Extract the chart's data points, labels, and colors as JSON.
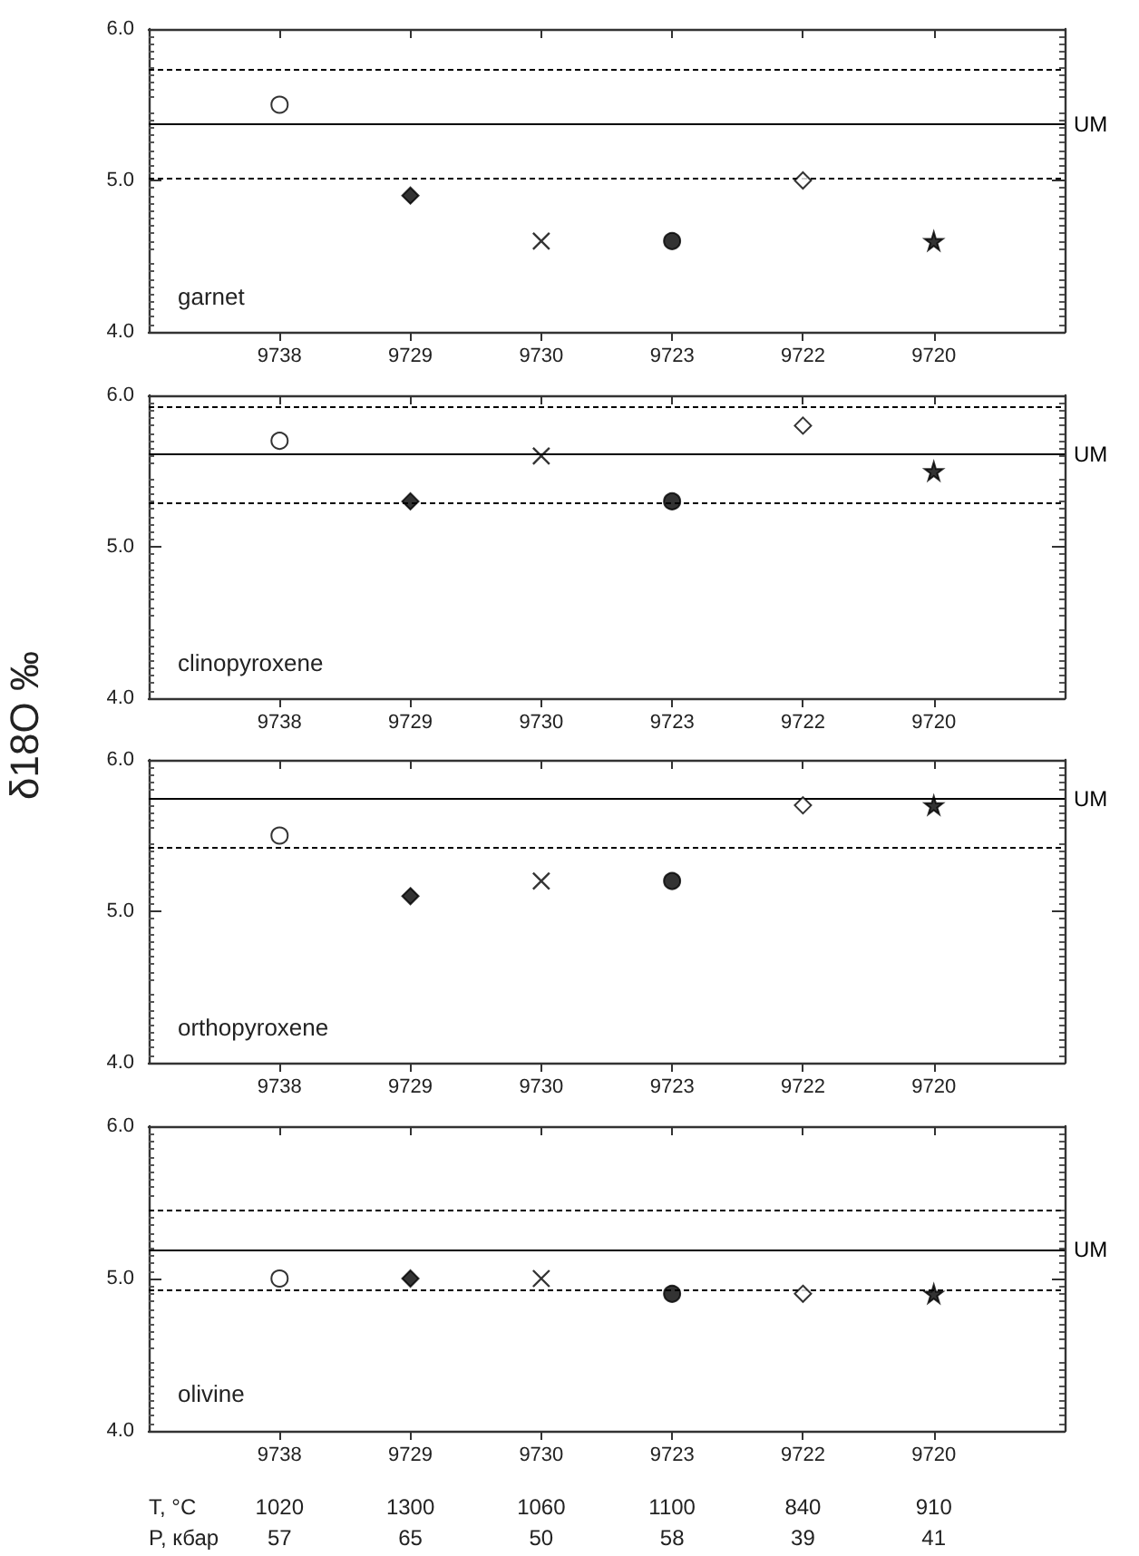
{
  "chart_data": [
    {
      "type": "scatter",
      "title": "garnet",
      "categories": [
        "9738",
        "9729",
        "9730",
        "9723",
        "9722",
        "9720"
      ],
      "ylim": [
        4,
        6
      ],
      "yticks": [
        {
          "value": 4,
          "label": "4.0"
        },
        {
          "value": 5,
          "label": "5.0"
        },
        {
          "value": 6,
          "label": "6.0"
        }
      ],
      "grid": false,
      "series": [
        {
          "values": [
            5.5,
            null,
            null,
            null,
            null,
            null
          ],
          "marker": "circle",
          "color": "#ffffff"
        },
        {
          "values": [
            null,
            4.9,
            null,
            null,
            null,
            null
          ],
          "marker": "diamond",
          "color": "#000000"
        },
        {
          "values": [
            null,
            null,
            4.6,
            null,
            null,
            null
          ],
          "marker": "cross",
          "color": "#000000"
        },
        {
          "values": [
            null,
            null,
            null,
            4.6,
            null,
            null
          ],
          "marker": "circle",
          "color": "#000000"
        },
        {
          "values": [
            null,
            null,
            null,
            null,
            5.0,
            null
          ],
          "marker": "diamond",
          "color": "#ffffff"
        },
        {
          "values": [
            null,
            null,
            null,
            null,
            null,
            4.6
          ],
          "marker": "star",
          "color": "#000000"
        }
      ],
      "ref_lines": [
        {
          "axis": "y",
          "value": 5.73,
          "line_style": "dashed",
          "color": "#000000"
        },
        {
          "axis": "y",
          "value": 5.37,
          "label": "UM",
          "line_style": "solid",
          "color": "#000000"
        },
        {
          "axis": "y",
          "value": 5.02,
          "line_style": "dashed",
          "color": "#000000"
        }
      ]
    },
    {
      "type": "scatter",
      "title": "clinopyroxene",
      "ylabel": "δ18O ‰",
      "categories": [
        "9738",
        "9729",
        "9730",
        "9723",
        "9722",
        "9720"
      ],
      "ylim": [
        4,
        6
      ],
      "yticks": [
        {
          "value": 4,
          "label": "4.0"
        },
        {
          "value": 5,
          "label": "5.0"
        },
        {
          "value": 6,
          "label": "6.0"
        }
      ],
      "grid": false,
      "series": [
        {
          "values": [
            5.7,
            null,
            null,
            null,
            null,
            null
          ],
          "marker": "circle",
          "color": "#ffffff"
        },
        {
          "values": [
            null,
            5.3,
            null,
            null,
            null,
            null
          ],
          "marker": "diamond",
          "color": "#000000"
        },
        {
          "values": [
            null,
            null,
            5.6,
            null,
            null,
            null
          ],
          "marker": "cross",
          "color": "#000000"
        },
        {
          "values": [
            null,
            null,
            null,
            5.3,
            null,
            null
          ],
          "marker": "circle",
          "color": "#000000"
        },
        {
          "values": [
            null,
            null,
            null,
            null,
            5.8,
            null
          ],
          "marker": "diamond",
          "color": "#ffffff"
        },
        {
          "values": [
            null,
            null,
            null,
            null,
            null,
            5.5
          ],
          "marker": "star",
          "color": "#000000"
        }
      ],
      "ref_lines": [
        {
          "axis": "y",
          "value": 5.93,
          "line_style": "dashed",
          "color": "#000000"
        },
        {
          "axis": "y",
          "value": 5.61,
          "label": "UM",
          "line_style": "solid",
          "color": "#000000"
        },
        {
          "axis": "y",
          "value": 5.29,
          "line_style": "dashed",
          "color": "#000000"
        }
      ]
    },
    {
      "type": "scatter",
      "title": "orthopyroxene",
      "categories": [
        "9738",
        "9729",
        "9730",
        "9723",
        "9722",
        "9720"
      ],
      "ylim": [
        4,
        6
      ],
      "yticks": [
        {
          "value": 4,
          "label": "4.0"
        },
        {
          "value": 5,
          "label": "5.0"
        },
        {
          "value": 6,
          "label": "6.0"
        }
      ],
      "grid": false,
      "series": [
        {
          "values": [
            5.5,
            null,
            null,
            null,
            null,
            null
          ],
          "marker": "circle",
          "color": "#ffffff"
        },
        {
          "values": [
            null,
            5.1,
            null,
            null,
            null,
            null
          ],
          "marker": "diamond",
          "color": "#000000"
        },
        {
          "values": [
            null,
            null,
            5.2,
            null,
            null,
            null
          ],
          "marker": "cross",
          "color": "#000000"
        },
        {
          "values": [
            null,
            null,
            null,
            5.2,
            null,
            null
          ],
          "marker": "circle",
          "color": "#000000"
        },
        {
          "values": [
            null,
            null,
            null,
            null,
            5.7,
            null
          ],
          "marker": "diamond",
          "color": "#ffffff"
        },
        {
          "values": [
            null,
            null,
            null,
            null,
            null,
            5.7
          ],
          "marker": "star",
          "color": "#000000"
        }
      ],
      "ref_lines": [
        {
          "axis": "y",
          "value": 5.74,
          "label": "UM",
          "line_style": "solid",
          "color": "#000000"
        },
        {
          "axis": "y",
          "value": 5.42,
          "line_style": "dashed",
          "color": "#000000"
        }
      ]
    },
    {
      "type": "scatter",
      "title": "olivine",
      "categories": [
        "9738",
        "9729",
        "9730",
        "9723",
        "9722",
        "9720"
      ],
      "ylim": [
        4,
        6
      ],
      "yticks": [
        {
          "value": 4,
          "label": "4.0"
        },
        {
          "value": 5,
          "label": "5.0"
        },
        {
          "value": 6,
          "label": "6.0"
        }
      ],
      "grid": false,
      "series": [
        {
          "values": [
            5.0,
            null,
            null,
            null,
            null,
            null
          ],
          "marker": "circle",
          "color": "#ffffff"
        },
        {
          "values": [
            null,
            5.0,
            null,
            null,
            null,
            null
          ],
          "marker": "diamond",
          "color": "#000000"
        },
        {
          "values": [
            null,
            null,
            5.0,
            null,
            null,
            null
          ],
          "marker": "cross",
          "color": "#000000"
        },
        {
          "values": [
            null,
            null,
            null,
            4.9,
            null,
            null
          ],
          "marker": "circle",
          "color": "#000000"
        },
        {
          "values": [
            null,
            null,
            null,
            null,
            4.9,
            null
          ],
          "marker": "diamond",
          "color": "#ffffff"
        },
        {
          "values": [
            null,
            null,
            null,
            null,
            null,
            4.9
          ],
          "marker": "star",
          "color": "#000000"
        }
      ],
      "ref_lines": [
        {
          "axis": "y",
          "value": 5.45,
          "line_style": "dashed",
          "color": "#000000"
        },
        {
          "axis": "y",
          "value": 5.19,
          "label": "UM",
          "line_style": "solid",
          "color": "#000000"
        },
        {
          "axis": "y",
          "value": 4.93,
          "line_style": "dashed",
          "color": "#000000"
        }
      ],
      "annotations": [
        "T, °C",
        "1020",
        "1300",
        "1060",
        "1100",
        "840",
        "910",
        "P, кбар",
        "57",
        "65",
        "50",
        "58",
        "39",
        "41"
      ]
    }
  ]
}
